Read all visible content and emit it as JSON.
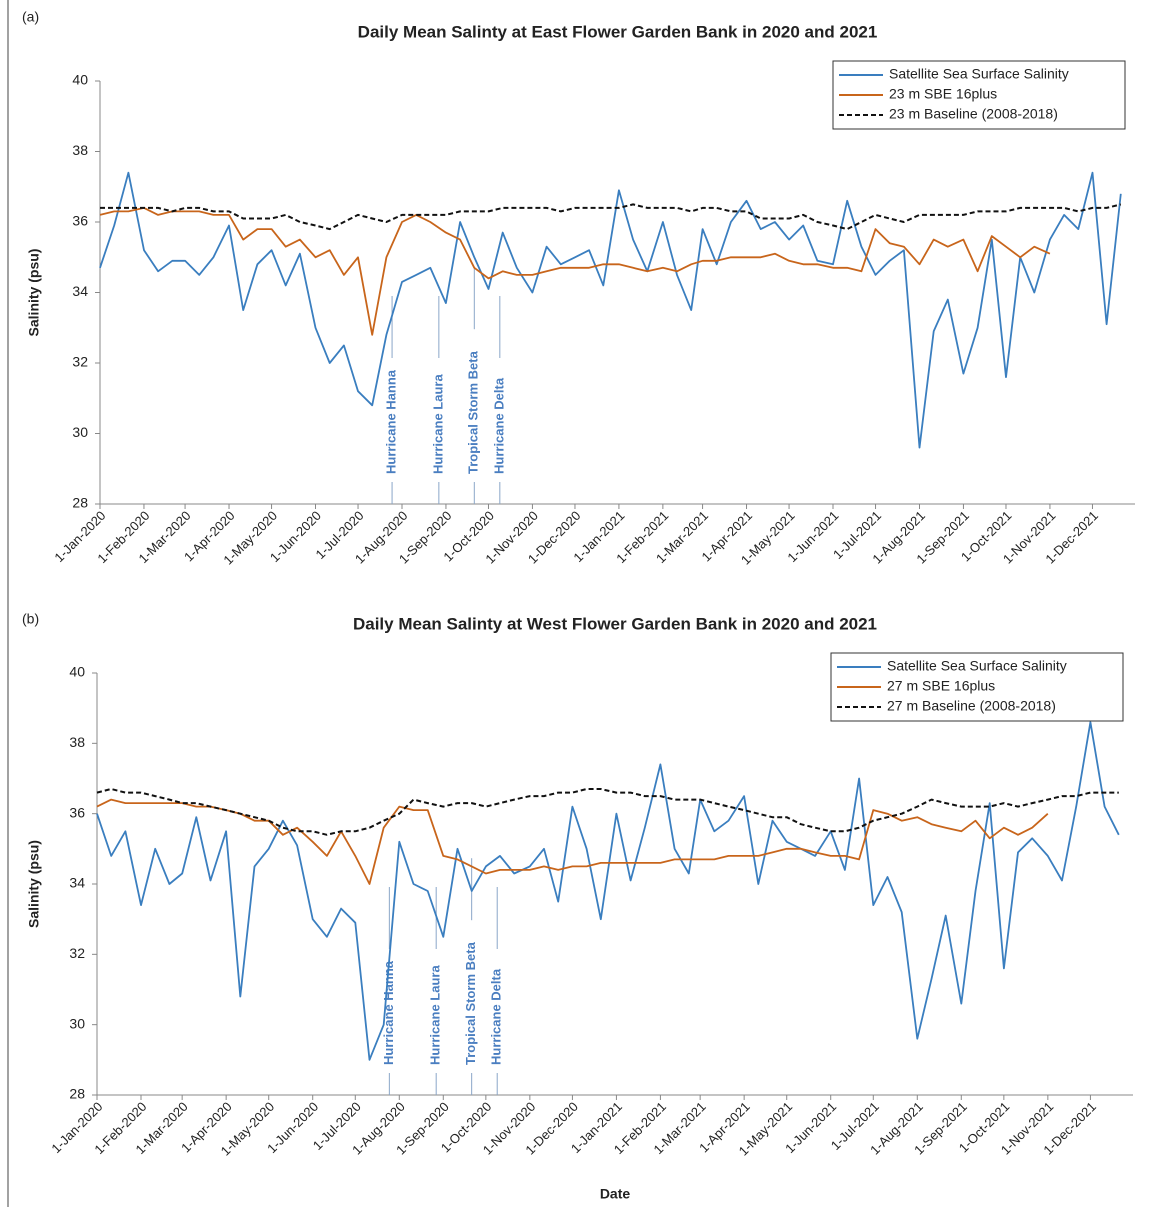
{
  "chart_data": [
    {
      "type": "line",
      "panel_label": "(a)",
      "title": "Daily Mean Salinty at East Flower Garden Bank in 2020 and 2021",
      "ylabel": "Salinity (psu)",
      "x": [
        "1-Jan-2020",
        "11-Jan-2020",
        "21-Jan-2020",
        "1-Feb-2020",
        "11-Feb-2020",
        "21-Feb-2020",
        "1-Mar-2020",
        "11-Mar-2020",
        "21-Mar-2020",
        "1-Apr-2020",
        "11-Apr-2020",
        "21-Apr-2020",
        "1-May-2020",
        "11-May-2020",
        "21-May-2020",
        "1-Jun-2020",
        "11-Jun-2020",
        "21-Jun-2020",
        "1-Jul-2020",
        "11-Jul-2020",
        "21-Jul-2020",
        "1-Aug-2020",
        "11-Aug-2020",
        "21-Aug-2020",
        "1-Sep-2020",
        "11-Sep-2020",
        "21-Sep-2020",
        "1-Oct-2020",
        "11-Oct-2020",
        "21-Oct-2020",
        "1-Nov-2020",
        "11-Nov-2020",
        "21-Nov-2020",
        "1-Dec-2020",
        "11-Dec-2020",
        "21-Dec-2020",
        "1-Jan-2021",
        "11-Jan-2021",
        "21-Jan-2021",
        "1-Feb-2021",
        "11-Feb-2021",
        "21-Feb-2021",
        "1-Mar-2021",
        "11-Mar-2021",
        "21-Mar-2021",
        "1-Apr-2021",
        "11-Apr-2021",
        "21-Apr-2021",
        "1-May-2021",
        "11-May-2021",
        "21-May-2021",
        "1-Jun-2021",
        "11-Jun-2021",
        "21-Jun-2021",
        "1-Jul-2021",
        "11-Jul-2021",
        "21-Jul-2021",
        "1-Aug-2021",
        "11-Aug-2021",
        "21-Aug-2021",
        "1-Sep-2021",
        "11-Sep-2021",
        "21-Sep-2021",
        "1-Oct-2021",
        "11-Oct-2021",
        "21-Oct-2021",
        "1-Nov-2021",
        "11-Nov-2021",
        "21-Nov-2021",
        "1-Dec-2021",
        "11-Dec-2021",
        "21-Dec-2021"
      ],
      "xlim": [
        "1-Jan-2020",
        "31-Dec-2021"
      ],
      "xticks": [
        "1-Jan-2020",
        "1-Feb-2020",
        "1-Mar-2020",
        "1-Apr-2020",
        "1-May-2020",
        "1-Jun-2020",
        "1-Jul-2020",
        "1-Aug-2020",
        "1-Sep-2020",
        "1-Oct-2020",
        "1-Nov-2020",
        "1-Dec-2020",
        "1-Jan-2021",
        "1-Feb-2021",
        "1-Mar-2021",
        "1-Apr-2021",
        "1-May-2021",
        "1-Jun-2021",
        "1-Jul-2021",
        "1-Aug-2021",
        "1-Sep-2021",
        "1-Oct-2021",
        "1-Nov-2021",
        "1-Dec-2021"
      ],
      "ylim": [
        28,
        40
      ],
      "yticks": [
        28,
        30,
        32,
        34,
        36,
        38,
        40
      ],
      "legend": "upper right",
      "series": [
        {
          "name": "Satellite Sea Surface Salinity",
          "color": "#3a7ebf",
          "dash": false,
          "values": [
            34.7,
            35.9,
            37.4,
            35.2,
            34.6,
            34.9,
            34.9,
            34.5,
            35.0,
            35.9,
            33.5,
            34.8,
            35.2,
            34.2,
            35.1,
            33.0,
            32.0,
            32.5,
            31.2,
            30.8,
            32.8,
            34.3,
            34.5,
            34.7,
            33.7,
            36.0,
            35.0,
            34.1,
            35.7,
            34.7,
            34.0,
            35.3,
            34.8,
            35.0,
            35.2,
            34.2,
            36.9,
            35.5,
            34.6,
            36.0,
            34.5,
            33.5,
            35.8,
            34.8,
            36.0,
            36.6,
            35.8,
            36.0,
            35.5,
            35.9,
            34.9,
            34.8,
            36.6,
            35.3,
            34.5,
            34.9,
            35.2,
            29.6,
            32.9,
            33.8,
            31.7,
            33.0,
            35.5,
            31.6,
            35.0,
            34.0,
            35.5,
            36.2,
            35.8,
            37.4,
            33.1,
            36.8
          ]
        },
        {
          "name": "23 m SBE 16plus",
          "color": "#c8651b",
          "dash": false,
          "values": [
            36.2,
            36.3,
            36.3,
            36.4,
            36.2,
            36.3,
            36.3,
            36.3,
            36.2,
            36.2,
            35.5,
            35.8,
            35.8,
            35.3,
            35.5,
            35.0,
            35.2,
            34.5,
            35.0,
            32.8,
            35.0,
            36.0,
            36.2,
            36.0,
            35.7,
            35.5,
            34.7,
            34.4,
            34.6,
            34.5,
            34.5,
            34.6,
            34.7,
            34.7,
            34.7,
            34.8,
            34.8,
            34.7,
            34.6,
            34.7,
            34.6,
            34.8,
            34.9,
            34.9,
            35.0,
            35.0,
            35.0,
            35.1,
            34.9,
            34.8,
            34.8,
            34.7,
            34.7,
            34.6,
            35.8,
            35.4,
            35.3,
            34.8,
            35.5,
            35.3,
            35.5,
            34.6,
            35.6,
            35.3,
            35.0,
            35.3,
            35.1,
            null,
            null,
            null,
            null,
            null
          ]
        },
        {
          "name": "23 m Baseline (2008-2018)",
          "color": "#111111",
          "dash": true,
          "values": [
            36.4,
            36.4,
            36.4,
            36.4,
            36.4,
            36.3,
            36.4,
            36.4,
            36.3,
            36.3,
            36.1,
            36.1,
            36.1,
            36.2,
            36.0,
            35.9,
            35.8,
            36.0,
            36.2,
            36.1,
            36.0,
            36.2,
            36.2,
            36.2,
            36.2,
            36.3,
            36.3,
            36.3,
            36.4,
            36.4,
            36.4,
            36.4,
            36.3,
            36.4,
            36.4,
            36.4,
            36.4,
            36.5,
            36.4,
            36.4,
            36.4,
            36.3,
            36.4,
            36.4,
            36.3,
            36.3,
            36.1,
            36.1,
            36.1,
            36.2,
            36.0,
            35.9,
            35.8,
            36.0,
            36.2,
            36.1,
            36.0,
            36.2,
            36.2,
            36.2,
            36.2,
            36.3,
            36.3,
            36.3,
            36.4,
            36.4,
            36.4,
            36.4,
            36.3,
            36.4,
            36.4,
            36.5
          ]
        }
      ],
      "annotations": [
        {
          "text": "Hurricane Hanna",
          "x": "25-Jul-2020"
        },
        {
          "text": "Hurricane Laura",
          "x": "27-Aug-2020"
        },
        {
          "text": "Tropical Storm Beta",
          "x": "21-Sep-2020"
        },
        {
          "text": "Hurricane Delta",
          "x": "9-Oct-2020"
        }
      ]
    },
    {
      "type": "line",
      "panel_label": "(b)",
      "title": "Daily Mean Salinty at West Flower Garden Bank in 2020 and 2021",
      "ylabel": "Salinity (psu)",
      "xlabel": "Date",
      "x": [
        "1-Jan-2020",
        "11-Jan-2020",
        "21-Jan-2020",
        "1-Feb-2020",
        "11-Feb-2020",
        "21-Feb-2020",
        "1-Mar-2020",
        "11-Mar-2020",
        "21-Mar-2020",
        "1-Apr-2020",
        "11-Apr-2020",
        "21-Apr-2020",
        "1-May-2020",
        "11-May-2020",
        "21-May-2020",
        "1-Jun-2020",
        "11-Jun-2020",
        "21-Jun-2020",
        "1-Jul-2020",
        "11-Jul-2020",
        "21-Jul-2020",
        "1-Aug-2020",
        "11-Aug-2020",
        "21-Aug-2020",
        "1-Sep-2020",
        "11-Sep-2020",
        "21-Sep-2020",
        "1-Oct-2020",
        "11-Oct-2020",
        "21-Oct-2020",
        "1-Nov-2020",
        "11-Nov-2020",
        "21-Nov-2020",
        "1-Dec-2020",
        "11-Dec-2020",
        "21-Dec-2020",
        "1-Jan-2021",
        "11-Jan-2021",
        "21-Jan-2021",
        "1-Feb-2021",
        "11-Feb-2021",
        "21-Feb-2021",
        "1-Mar-2021",
        "11-Mar-2021",
        "21-Mar-2021",
        "1-Apr-2021",
        "11-Apr-2021",
        "21-Apr-2021",
        "1-May-2021",
        "11-May-2021",
        "21-May-2021",
        "1-Jun-2021",
        "11-Jun-2021",
        "21-Jun-2021",
        "1-Jul-2021",
        "11-Jul-2021",
        "21-Jul-2021",
        "1-Aug-2021",
        "11-Aug-2021",
        "21-Aug-2021",
        "1-Sep-2021",
        "11-Sep-2021",
        "21-Sep-2021",
        "1-Oct-2021",
        "11-Oct-2021",
        "21-Oct-2021",
        "1-Nov-2021",
        "11-Nov-2021",
        "21-Nov-2021",
        "1-Dec-2021",
        "11-Dec-2021",
        "21-Dec-2021"
      ],
      "xlim": [
        "1-Jan-2020",
        "31-Dec-2021"
      ],
      "xticks": [
        "1-Jan-2020",
        "1-Feb-2020",
        "1-Mar-2020",
        "1-Apr-2020",
        "1-May-2020",
        "1-Jun-2020",
        "1-Jul-2020",
        "1-Aug-2020",
        "1-Sep-2020",
        "1-Oct-2020",
        "1-Nov-2020",
        "1-Dec-2020",
        "1-Jan-2021",
        "1-Feb-2021",
        "1-Mar-2021",
        "1-Apr-2021",
        "1-May-2021",
        "1-Jun-2021",
        "1-Jul-2021",
        "1-Aug-2021",
        "1-Sep-2021",
        "1-Oct-2021",
        "1-Nov-2021",
        "1-Dec-2021"
      ],
      "ylim": [
        28,
        40
      ],
      "yticks": [
        28,
        30,
        32,
        34,
        36,
        38,
        40
      ],
      "legend": "upper right",
      "series": [
        {
          "name": "Satellite Sea Surface Salinity",
          "color": "#3a7ebf",
          "dash": false,
          "values": [
            36.0,
            34.8,
            35.5,
            33.4,
            35.0,
            34.0,
            34.3,
            35.9,
            34.1,
            35.5,
            30.8,
            34.5,
            35.0,
            35.8,
            35.1,
            33.0,
            32.5,
            33.3,
            32.9,
            29.0,
            30.0,
            35.2,
            34.0,
            33.8,
            32.5,
            35.0,
            33.8,
            34.5,
            34.8,
            34.3,
            34.5,
            35.0,
            33.5,
            36.2,
            35.0,
            33.0,
            36.0,
            34.1,
            35.6,
            37.4,
            35.0,
            34.3,
            36.4,
            35.5,
            35.8,
            36.5,
            34.0,
            35.8,
            35.2,
            35.0,
            34.8,
            35.5,
            34.4,
            37.0,
            33.4,
            34.2,
            33.2,
            29.6,
            31.3,
            33.1,
            30.6,
            33.8,
            36.3,
            31.6,
            34.9,
            35.3,
            34.8,
            34.1,
            36.2,
            38.6,
            36.2,
            35.4
          ]
        },
        {
          "name": "27 m SBE 16plus",
          "color": "#c8651b",
          "dash": false,
          "values": [
            36.2,
            36.4,
            36.3,
            36.3,
            36.3,
            36.3,
            36.3,
            36.2,
            36.2,
            36.1,
            36.0,
            35.8,
            35.8,
            35.4,
            35.6,
            35.2,
            34.8,
            35.5,
            34.8,
            34.0,
            35.6,
            36.2,
            36.1,
            36.1,
            34.8,
            34.7,
            34.5,
            34.3,
            34.4,
            34.4,
            34.4,
            34.5,
            34.4,
            34.5,
            34.5,
            34.6,
            34.6,
            34.6,
            34.6,
            34.6,
            34.7,
            34.7,
            34.7,
            34.7,
            34.8,
            34.8,
            34.8,
            34.9,
            35.0,
            35.0,
            34.9,
            34.8,
            34.8,
            34.7,
            36.1,
            36.0,
            35.8,
            35.9,
            35.7,
            35.6,
            35.5,
            35.8,
            35.3,
            35.6,
            35.4,
            35.6,
            36.0,
            null,
            null,
            null,
            null,
            null
          ]
        },
        {
          "name": "27 m Baseline (2008-2018)",
          "color": "#111111",
          "dash": true,
          "values": [
            36.6,
            36.7,
            36.6,
            36.6,
            36.5,
            36.4,
            36.3,
            36.3,
            36.2,
            36.1,
            36.0,
            35.9,
            35.8,
            35.6,
            35.5,
            35.5,
            35.4,
            35.5,
            35.5,
            35.6,
            35.8,
            36.0,
            36.4,
            36.3,
            36.2,
            36.3,
            36.3,
            36.2,
            36.3,
            36.4,
            36.5,
            36.5,
            36.6,
            36.6,
            36.7,
            36.7,
            36.6,
            36.6,
            36.5,
            36.5,
            36.4,
            36.4,
            36.4,
            36.3,
            36.2,
            36.1,
            36.0,
            35.9,
            35.9,
            35.7,
            35.6,
            35.5,
            35.5,
            35.6,
            35.8,
            35.9,
            36.0,
            36.2,
            36.4,
            36.3,
            36.2,
            36.2,
            36.2,
            36.3,
            36.2,
            36.3,
            36.4,
            36.5,
            36.5,
            36.6,
            36.6,
            36.6
          ]
        }
      ],
      "annotations": [
        {
          "text": "Hurricane Hanna",
          "x": "25-Jul-2020"
        },
        {
          "text": "Hurricane Laura",
          "x": "27-Aug-2020"
        },
        {
          "text": "Tropical Storm Beta",
          "x": "21-Sep-2020"
        },
        {
          "text": "Hurricane Delta",
          "x": "9-Oct-2020"
        }
      ]
    }
  ]
}
